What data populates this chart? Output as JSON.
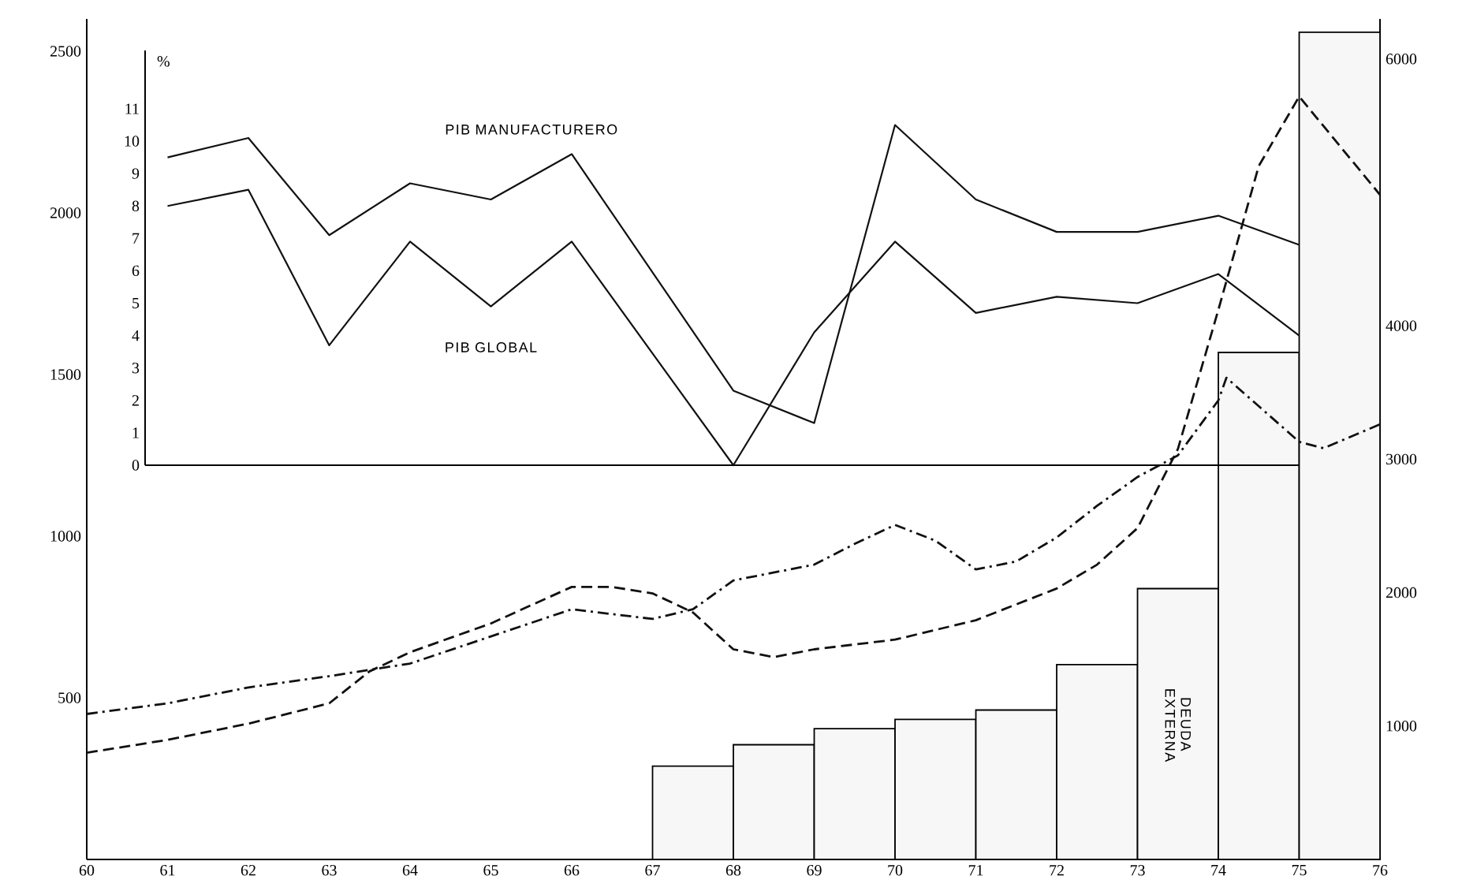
{
  "chart_data": {
    "type": "line",
    "xlim": [
      60,
      76
    ],
    "xticks": [
      60,
      61,
      62,
      63,
      64,
      65,
      66,
      67,
      68,
      69,
      70,
      71,
      72,
      73,
      74,
      75,
      76
    ],
    "ylim": [
      0,
      2600
    ],
    "yticks": [
      500,
      1000,
      1500,
      2000,
      2500
    ],
    "y2lim": [
      0,
      6300
    ],
    "y2ticks": [
      1000,
      2000,
      3000,
      4000,
      6000
    ],
    "y3lim": [
      0,
      12.8
    ],
    "y3ticks": [
      0,
      1,
      2,
      3,
      4,
      5,
      6,
      7,
      8,
      9,
      10,
      11
    ],
    "y3label": "%",
    "series": [
      {
        "name": "DEUDA EXTERNA",
        "type": "bar",
        "axis": "y2",
        "color": "#f7f7f7",
        "x": [
          67.5,
          68.5,
          69.5,
          70.5,
          71.5,
          72.5,
          73.5,
          74.5,
          75.5
        ],
        "values": [
          700,
          860,
          980,
          1050,
          1120,
          1460,
          2030,
          3800,
          6200
        ]
      },
      {
        "type": "line",
        "line_style": "dashed",
        "color": "#111111",
        "x": [
          60,
          61,
          62,
          63,
          63.5,
          64,
          65,
          66,
          66.5,
          67,
          67.5,
          68,
          68.5,
          69,
          70,
          71,
          72,
          72.5,
          73,
          73.5,
          74,
          74.5,
          75,
          76
        ],
        "values": [
          330,
          370,
          420,
          483,
          582,
          641,
          730,
          843,
          843,
          823,
          764,
          650,
          626,
          650,
          680,
          740,
          838,
          912,
          1025,
          1270,
          1700,
          2145,
          2360,
          2056
        ]
      },
      {
        "type": "line",
        "line_style": "dashdot",
        "color": "#111111",
        "x": [
          60,
          61,
          62,
          63,
          64,
          65,
          66,
          67,
          67.5,
          68,
          69,
          69.5,
          70,
          70.5,
          71,
          71.5,
          72,
          72.5,
          73,
          73.5,
          74,
          74.1,
          75,
          75.3,
          76
        ],
        "values": [
          450,
          483,
          532,
          567,
          606,
          690,
          774,
          744,
          774,
          863,
          912,
          976,
          1035,
          986,
          897,
          922,
          996,
          1094,
          1183,
          1250,
          1420,
          1490,
          1292,
          1272,
          1346
        ]
      },
      {
        "name": "PIB MANUFACTURERO",
        "axis": "y3",
        "line_style": "solid",
        "color": "#111111",
        "x": [
          61,
          62,
          63,
          64,
          65,
          66,
          68,
          69,
          70,
          71,
          72,
          73,
          74,
          75
        ],
        "values": [
          9.5,
          10.1,
          7.1,
          8.7,
          8.2,
          9.6,
          2.3,
          1.3,
          10.5,
          8.2,
          7.2,
          7.2,
          7.7,
          6.8
        ]
      },
      {
        "name": "PIB GLOBAL",
        "axis": "y3",
        "line_style": "solid",
        "color": "#111111",
        "x": [
          61,
          62,
          63,
          64,
          65,
          66,
          68,
          69,
          70,
          71,
          72,
          73,
          74,
          75
        ],
        "values": [
          8.0,
          8.5,
          3.7,
          6.9,
          4.9,
          6.9,
          0.0,
          4.1,
          6.9,
          4.7,
          5.2,
          5.0,
          5.9,
          4.0
        ]
      }
    ]
  }
}
